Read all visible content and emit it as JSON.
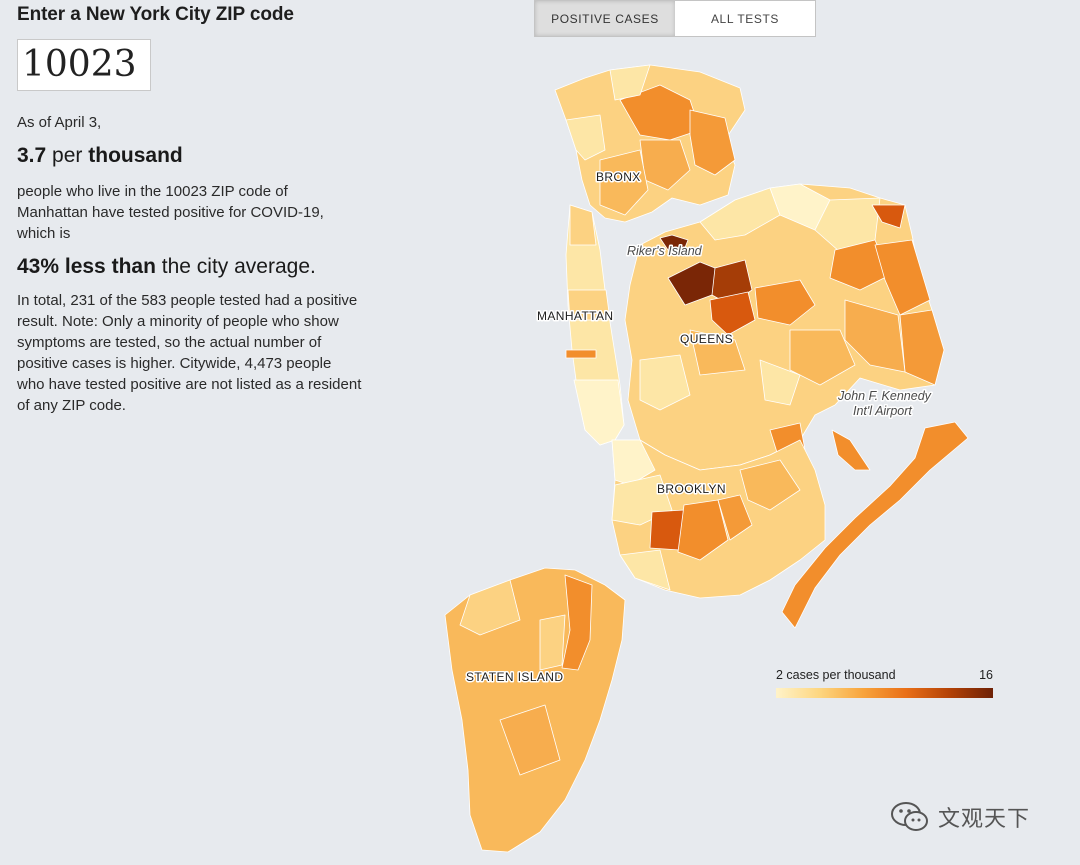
{
  "heading": "Enter a New York City ZIP code",
  "zip_input": {
    "value": "10023"
  },
  "as_of": "As of April 3,",
  "rate": {
    "value": "3.7",
    "per": "per",
    "unit": "thousand"
  },
  "explanation": "people who live in the 10023 ZIP code of Manhattan have tested positive for COVID-19, which is",
  "comparison": {
    "bold": "43% less than",
    "rest": "the city average."
  },
  "detail": "In total, 231 of the 583 people tested had a positive result. Note: Only a minority of people who show symptoms are tested, so the actual number of positive cases is higher. Citywide, 4,473 people who have tested positive are not listed as a resident of any ZIP code.",
  "toggle": {
    "options": [
      "POSITIVE CASES",
      "ALL TESTS"
    ],
    "selected": "POSITIVE CASES"
  },
  "map": {
    "borough_labels": [
      "BRONX",
      "MANHATTAN",
      "QUEENS",
      "BROOKLYN",
      "STATEN ISLAND"
    ],
    "place_labels": {
      "rikers": "Riker's Island",
      "jfk_line1": "John F. Kennedy",
      "jfk_line2": "Int'l Airport"
    },
    "colors": {
      "lowest": "#fff3c9",
      "low": "#fde6a6",
      "light": "#fcd282",
      "mid": "#f9b95b",
      "orange": "#f28e2c",
      "dark": "#d8590e",
      "darkest": "#7a2606",
      "water": "#e7eaee"
    }
  },
  "legend": {
    "min_label": "2 cases per thousand",
    "max_label": "16"
  },
  "watermark": {
    "text": "文观天下",
    "icon": "wechat-icon"
  }
}
